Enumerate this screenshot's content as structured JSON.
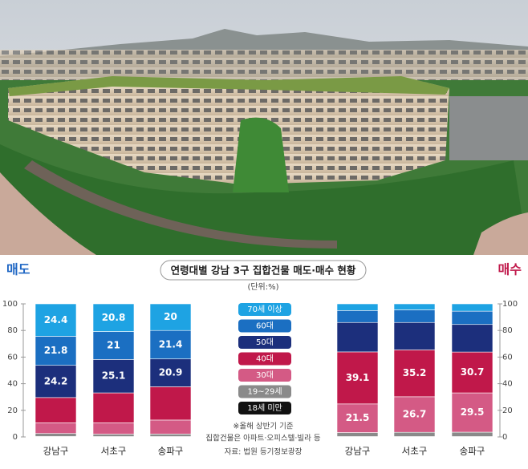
{
  "chart_data": {
    "type": "bar",
    "stacked": true,
    "title": "연령대별 강남 3구 집합건물 매도·매수 현황",
    "unit": "(단위:%)",
    "notes": [
      "※올해 상반기 기준",
      "집합건물은 아파트·오피스텔·빌라 등"
    ],
    "source": "자료: 법원 등기정보광장",
    "categories": [
      "강남구",
      "서초구",
      "송파구"
    ],
    "ylim": [
      0,
      100
    ],
    "yticks": [
      0,
      20,
      40,
      60,
      80,
      100
    ],
    "series": [
      {
        "name": "70세 이상",
        "color": "#1ea3e3"
      },
      {
        "name": "60대",
        "color": "#1b6fc2"
      },
      {
        "name": "50대",
        "color": "#1c2f7c"
      },
      {
        "name": "40대",
        "color": "#c0184a"
      },
      {
        "name": "30대",
        "color": "#d45a85"
      },
      {
        "name": "19~29세",
        "color": "#8a8a8a"
      },
      {
        "name": "18세 미만",
        "color": "#111111"
      }
    ],
    "panels": [
      {
        "label": "매도",
        "labeled_series": [
          0,
          1,
          2
        ],
        "values": [
          [
            24.4,
            20.8,
            20.0
          ],
          [
            21.8,
            21.0,
            21.4
          ],
          [
            24.2,
            25.1,
            20.9
          ],
          [
            19.0,
            22.5,
            25.0
          ],
          [
            8.0,
            8.5,
            10.5
          ],
          [
            2.2,
            1.8,
            1.9
          ],
          [
            0.4,
            0.3,
            0.3
          ]
        ]
      },
      {
        "label": "매수",
        "labeled_series": [
          3,
          4
        ],
        "values": [
          [
            5.0,
            4.5,
            5.5
          ],
          [
            9.0,
            9.5,
            10.0
          ],
          [
            22.1,
            20.6,
            20.7
          ],
          [
            39.1,
            35.2,
            30.7
          ],
          [
            21.5,
            26.7,
            29.5
          ],
          [
            3.0,
            3.2,
            3.3
          ],
          [
            0.3,
            0.3,
            0.3
          ]
        ]
      }
    ]
  }
}
